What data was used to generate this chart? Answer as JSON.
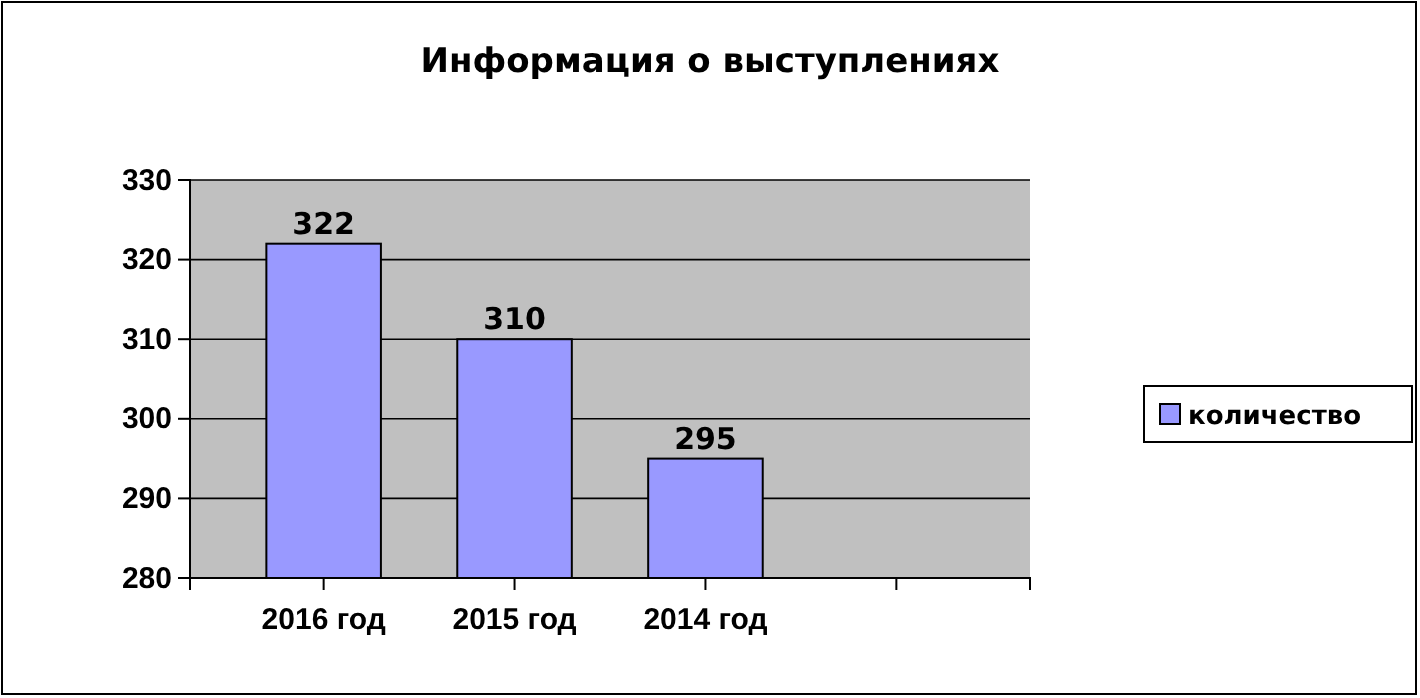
{
  "chart_data": {
    "type": "bar",
    "title": "Информация о выступлениях",
    "categories": [
      "2016 год",
      "2015 год",
      "2014 год",
      null
    ],
    "series": [
      {
        "name": "количество",
        "color": "#9999ff",
        "values": [
          322,
          310,
          295,
          null
        ]
      }
    ],
    "ylim": [
      280,
      330
    ],
    "yticks": [
      280,
      290,
      300,
      310,
      320,
      330
    ],
    "grid": "y",
    "legend": "right",
    "data_labels": true
  }
}
